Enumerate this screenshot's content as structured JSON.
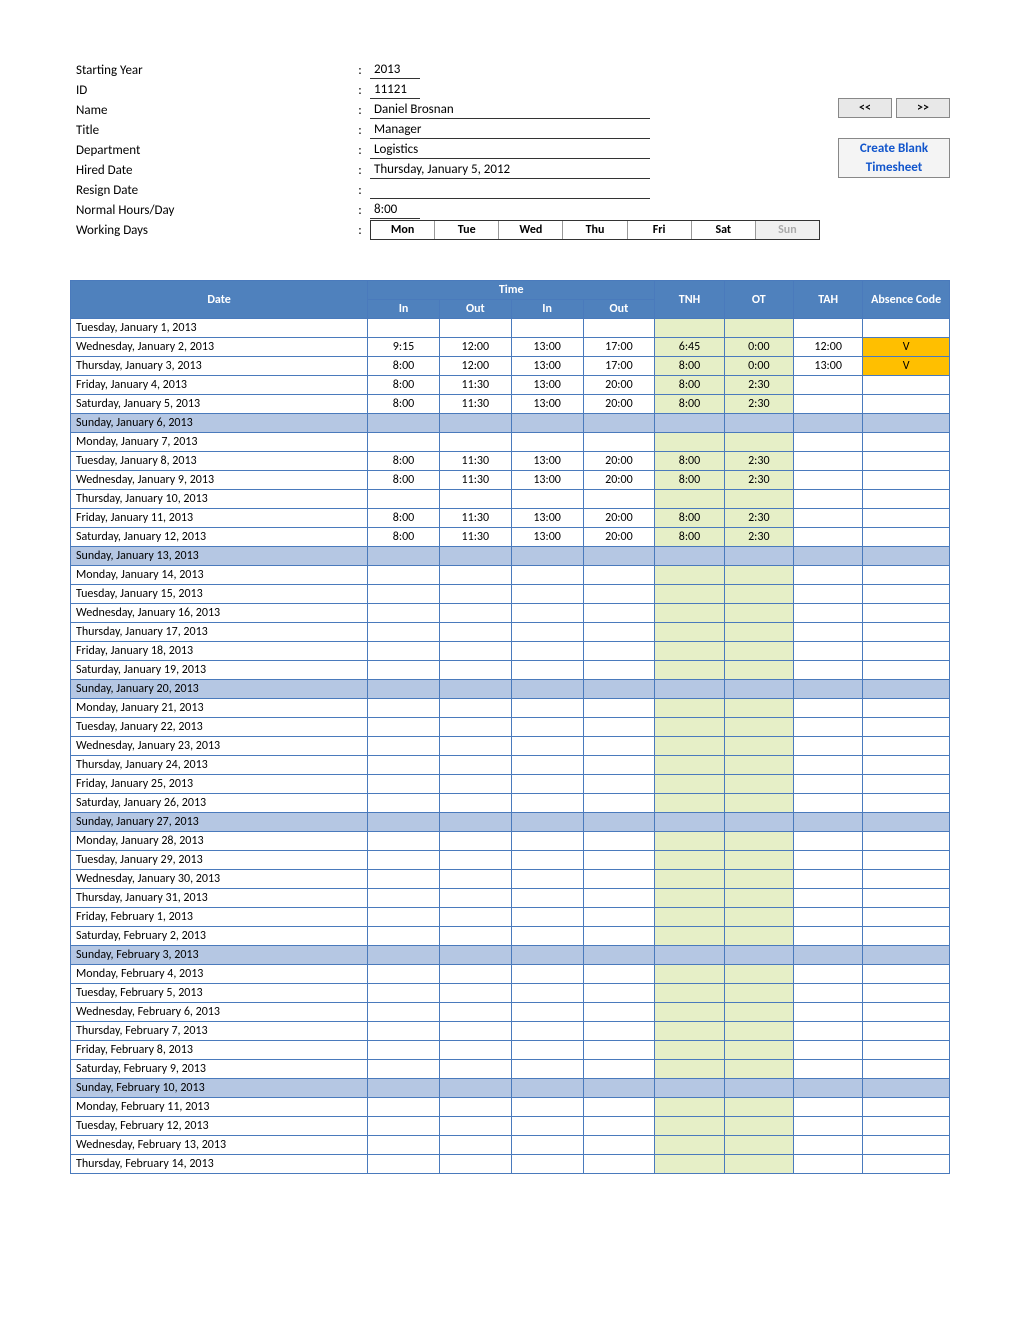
{
  "header": {
    "fields": [
      {
        "label": "Starting Year",
        "value": "2013",
        "valueWidth": "50px",
        "row_extras": null
      },
      {
        "label": "ID",
        "value": "11121",
        "valueWidth": "50px",
        "row_extras": null
      },
      {
        "label": "Name",
        "value": "Daniel Brosnan",
        "valueWidth": "280px",
        "row_extras": "nav"
      },
      {
        "label": "Title",
        "value": "Manager",
        "valueWidth": "280px",
        "row_extras": null
      },
      {
        "label": "Department",
        "value": "Logistics",
        "valueWidth": "280px",
        "row_extras": "create"
      },
      {
        "label": "Hired Date",
        "value": "Thursday, January 5, 2012",
        "valueWidth": "280px",
        "row_extras": "timesheet"
      },
      {
        "label": "Resign Date",
        "value": "",
        "valueWidth": "280px",
        "row_extras": null
      },
      {
        "label": "Normal Hours/Day",
        "value": "8:00",
        "valueWidth": "50px",
        "row_extras": null
      }
    ],
    "workingDaysLabel": "Working Days",
    "days": [
      {
        "label": "Mon",
        "off": false
      },
      {
        "label": "Tue",
        "off": false
      },
      {
        "label": "Wed",
        "off": false
      },
      {
        "label": "Thu",
        "off": false
      },
      {
        "label": "Fri",
        "off": false
      },
      {
        "label": "Sat",
        "off": false
      },
      {
        "label": "Sun",
        "off": true
      }
    ],
    "navPrev": "<<",
    "navNext": ">>",
    "createBlank": "Create Blank",
    "timesheetLink": "Timesheet"
  },
  "tableHeaders": {
    "date": "Date",
    "time": "Time",
    "in": "In",
    "out": "Out",
    "tnh": "TNH",
    "ot": "OT",
    "tah": "TAH",
    "absence": "Absence Code"
  },
  "rows": [
    {
      "date": "Tuesday, January 1, 2013",
      "sunday": false,
      "in1": "",
      "out1": "",
      "in2": "",
      "out2": "",
      "tnh": "",
      "ot": "",
      "tah": "",
      "abs": ""
    },
    {
      "date": "Wednesday, January 2, 2013",
      "sunday": false,
      "in1": "9:15",
      "out1": "12:00",
      "in2": "13:00",
      "out2": "17:00",
      "tnh": "6:45",
      "ot": "0:00",
      "tah": "12:00",
      "abs": "V"
    },
    {
      "date": "Thursday, January 3, 2013",
      "sunday": false,
      "in1": "8:00",
      "out1": "12:00",
      "in2": "13:00",
      "out2": "17:00",
      "tnh": "8:00",
      "ot": "0:00",
      "tah": "13:00",
      "abs": "V"
    },
    {
      "date": "Friday, January 4, 2013",
      "sunday": false,
      "in1": "8:00",
      "out1": "11:30",
      "in2": "13:00",
      "out2": "20:00",
      "tnh": "8:00",
      "ot": "2:30",
      "tah": "",
      "abs": ""
    },
    {
      "date": "Saturday, January 5, 2013",
      "sunday": false,
      "in1": "8:00",
      "out1": "11:30",
      "in2": "13:00",
      "out2": "20:00",
      "tnh": "8:00",
      "ot": "2:30",
      "tah": "",
      "abs": ""
    },
    {
      "date": "Sunday, January 6, 2013",
      "sunday": true,
      "in1": "",
      "out1": "",
      "in2": "",
      "out2": "",
      "tnh": "",
      "ot": "",
      "tah": "",
      "abs": ""
    },
    {
      "date": "Monday, January 7, 2013",
      "sunday": false,
      "in1": "",
      "out1": "",
      "in2": "",
      "out2": "",
      "tnh": "",
      "ot": "",
      "tah": "",
      "abs": ""
    },
    {
      "date": "Tuesday, January 8, 2013",
      "sunday": false,
      "in1": "8:00",
      "out1": "11:30",
      "in2": "13:00",
      "out2": "20:00",
      "tnh": "8:00",
      "ot": "2:30",
      "tah": "",
      "abs": ""
    },
    {
      "date": "Wednesday, January 9, 2013",
      "sunday": false,
      "in1": "8:00",
      "out1": "11:30",
      "in2": "13:00",
      "out2": "20:00",
      "tnh": "8:00",
      "ot": "2:30",
      "tah": "",
      "abs": ""
    },
    {
      "date": "Thursday, January 10, 2013",
      "sunday": false,
      "in1": "",
      "out1": "",
      "in2": "",
      "out2": "",
      "tnh": "",
      "ot": "",
      "tah": "",
      "abs": ""
    },
    {
      "date": "Friday, January 11, 2013",
      "sunday": false,
      "in1": "8:00",
      "out1": "11:30",
      "in2": "13:00",
      "out2": "20:00",
      "tnh": "8:00",
      "ot": "2:30",
      "tah": "",
      "abs": ""
    },
    {
      "date": "Saturday, January 12, 2013",
      "sunday": false,
      "in1": "8:00",
      "out1": "11:30",
      "in2": "13:00",
      "out2": "20:00",
      "tnh": "8:00",
      "ot": "2:30",
      "tah": "",
      "abs": ""
    },
    {
      "date": "Sunday, January 13, 2013",
      "sunday": true,
      "in1": "",
      "out1": "",
      "in2": "",
      "out2": "",
      "tnh": "",
      "ot": "",
      "tah": "",
      "abs": ""
    },
    {
      "date": "Monday, January 14, 2013",
      "sunday": false,
      "in1": "",
      "out1": "",
      "in2": "",
      "out2": "",
      "tnh": "",
      "ot": "",
      "tah": "",
      "abs": ""
    },
    {
      "date": "Tuesday, January 15, 2013",
      "sunday": false,
      "in1": "",
      "out1": "",
      "in2": "",
      "out2": "",
      "tnh": "",
      "ot": "",
      "tah": "",
      "abs": ""
    },
    {
      "date": "Wednesday, January 16, 2013",
      "sunday": false,
      "in1": "",
      "out1": "",
      "in2": "",
      "out2": "",
      "tnh": "",
      "ot": "",
      "tah": "",
      "abs": ""
    },
    {
      "date": "Thursday, January 17, 2013",
      "sunday": false,
      "in1": "",
      "out1": "",
      "in2": "",
      "out2": "",
      "tnh": "",
      "ot": "",
      "tah": "",
      "abs": ""
    },
    {
      "date": "Friday, January 18, 2013",
      "sunday": false,
      "in1": "",
      "out1": "",
      "in2": "",
      "out2": "",
      "tnh": "",
      "ot": "",
      "tah": "",
      "abs": ""
    },
    {
      "date": "Saturday, January 19, 2013",
      "sunday": false,
      "in1": "",
      "out1": "",
      "in2": "",
      "out2": "",
      "tnh": "",
      "ot": "",
      "tah": "",
      "abs": ""
    },
    {
      "date": "Sunday, January 20, 2013",
      "sunday": true,
      "in1": "",
      "out1": "",
      "in2": "",
      "out2": "",
      "tnh": "",
      "ot": "",
      "tah": "",
      "abs": ""
    },
    {
      "date": "Monday, January 21, 2013",
      "sunday": false,
      "in1": "",
      "out1": "",
      "in2": "",
      "out2": "",
      "tnh": "",
      "ot": "",
      "tah": "",
      "abs": ""
    },
    {
      "date": "Tuesday, January 22, 2013",
      "sunday": false,
      "in1": "",
      "out1": "",
      "in2": "",
      "out2": "",
      "tnh": "",
      "ot": "",
      "tah": "",
      "abs": ""
    },
    {
      "date": "Wednesday, January 23, 2013",
      "sunday": false,
      "in1": "",
      "out1": "",
      "in2": "",
      "out2": "",
      "tnh": "",
      "ot": "",
      "tah": "",
      "abs": ""
    },
    {
      "date": "Thursday, January 24, 2013",
      "sunday": false,
      "in1": "",
      "out1": "",
      "in2": "",
      "out2": "",
      "tnh": "",
      "ot": "",
      "tah": "",
      "abs": ""
    },
    {
      "date": "Friday, January 25, 2013",
      "sunday": false,
      "in1": "",
      "out1": "",
      "in2": "",
      "out2": "",
      "tnh": "",
      "ot": "",
      "tah": "",
      "abs": ""
    },
    {
      "date": "Saturday, January 26, 2013",
      "sunday": false,
      "in1": "",
      "out1": "",
      "in2": "",
      "out2": "",
      "tnh": "",
      "ot": "",
      "tah": "",
      "abs": ""
    },
    {
      "date": "Sunday, January 27, 2013",
      "sunday": true,
      "in1": "",
      "out1": "",
      "in2": "",
      "out2": "",
      "tnh": "",
      "ot": "",
      "tah": "",
      "abs": ""
    },
    {
      "date": "Monday, January 28, 2013",
      "sunday": false,
      "in1": "",
      "out1": "",
      "in2": "",
      "out2": "",
      "tnh": "",
      "ot": "",
      "tah": "",
      "abs": ""
    },
    {
      "date": "Tuesday, January 29, 2013",
      "sunday": false,
      "in1": "",
      "out1": "",
      "in2": "",
      "out2": "",
      "tnh": "",
      "ot": "",
      "tah": "",
      "abs": ""
    },
    {
      "date": "Wednesday, January 30, 2013",
      "sunday": false,
      "in1": "",
      "out1": "",
      "in2": "",
      "out2": "",
      "tnh": "",
      "ot": "",
      "tah": "",
      "abs": ""
    },
    {
      "date": "Thursday, January 31, 2013",
      "sunday": false,
      "in1": "",
      "out1": "",
      "in2": "",
      "out2": "",
      "tnh": "",
      "ot": "",
      "tah": "",
      "abs": ""
    },
    {
      "date": "Friday, February 1, 2013",
      "sunday": false,
      "in1": "",
      "out1": "",
      "in2": "",
      "out2": "",
      "tnh": "",
      "ot": "",
      "tah": "",
      "abs": ""
    },
    {
      "date": "Saturday, February 2, 2013",
      "sunday": false,
      "in1": "",
      "out1": "",
      "in2": "",
      "out2": "",
      "tnh": "",
      "ot": "",
      "tah": "",
      "abs": ""
    },
    {
      "date": "Sunday, February 3, 2013",
      "sunday": true,
      "in1": "",
      "out1": "",
      "in2": "",
      "out2": "",
      "tnh": "",
      "ot": "",
      "tah": "",
      "abs": ""
    },
    {
      "date": "Monday, February 4, 2013",
      "sunday": false,
      "in1": "",
      "out1": "",
      "in2": "",
      "out2": "",
      "tnh": "",
      "ot": "",
      "tah": "",
      "abs": ""
    },
    {
      "date": "Tuesday, February 5, 2013",
      "sunday": false,
      "in1": "",
      "out1": "",
      "in2": "",
      "out2": "",
      "tnh": "",
      "ot": "",
      "tah": "",
      "abs": ""
    },
    {
      "date": "Wednesday, February 6, 2013",
      "sunday": false,
      "in1": "",
      "out1": "",
      "in2": "",
      "out2": "",
      "tnh": "",
      "ot": "",
      "tah": "",
      "abs": ""
    },
    {
      "date": "Thursday, February 7, 2013",
      "sunday": false,
      "in1": "",
      "out1": "",
      "in2": "",
      "out2": "",
      "tnh": "",
      "ot": "",
      "tah": "",
      "abs": ""
    },
    {
      "date": "Friday, February 8, 2013",
      "sunday": false,
      "in1": "",
      "out1": "",
      "in2": "",
      "out2": "",
      "tnh": "",
      "ot": "",
      "tah": "",
      "abs": ""
    },
    {
      "date": "Saturday, February 9, 2013",
      "sunday": false,
      "in1": "",
      "out1": "",
      "in2": "",
      "out2": "",
      "tnh": "",
      "ot": "",
      "tah": "",
      "abs": ""
    },
    {
      "date": "Sunday, February 10, 2013",
      "sunday": true,
      "in1": "",
      "out1": "",
      "in2": "",
      "out2": "",
      "tnh": "",
      "ot": "",
      "tah": "",
      "abs": ""
    },
    {
      "date": "Monday, February 11, 2013",
      "sunday": false,
      "in1": "",
      "out1": "",
      "in2": "",
      "out2": "",
      "tnh": "",
      "ot": "",
      "tah": "",
      "abs": ""
    },
    {
      "date": "Tuesday, February 12, 2013",
      "sunday": false,
      "in1": "",
      "out1": "",
      "in2": "",
      "out2": "",
      "tnh": "",
      "ot": "",
      "tah": "",
      "abs": ""
    },
    {
      "date": "Wednesday, February 13, 2013",
      "sunday": false,
      "in1": "",
      "out1": "",
      "in2": "",
      "out2": "",
      "tnh": "",
      "ot": "",
      "tah": "",
      "abs": ""
    },
    {
      "date": "Thursday, February 14, 2013",
      "sunday": false,
      "in1": "",
      "out1": "",
      "in2": "",
      "out2": "",
      "tnh": "",
      "ot": "",
      "tah": "",
      "abs": ""
    }
  ],
  "colors": {
    "headerBg": "#4f81bd",
    "sundayBg": "#b5c7e3",
    "calcBg": "#e6efc7",
    "absVBg": "#ffbf00",
    "borderColor": "#4a7abc"
  }
}
